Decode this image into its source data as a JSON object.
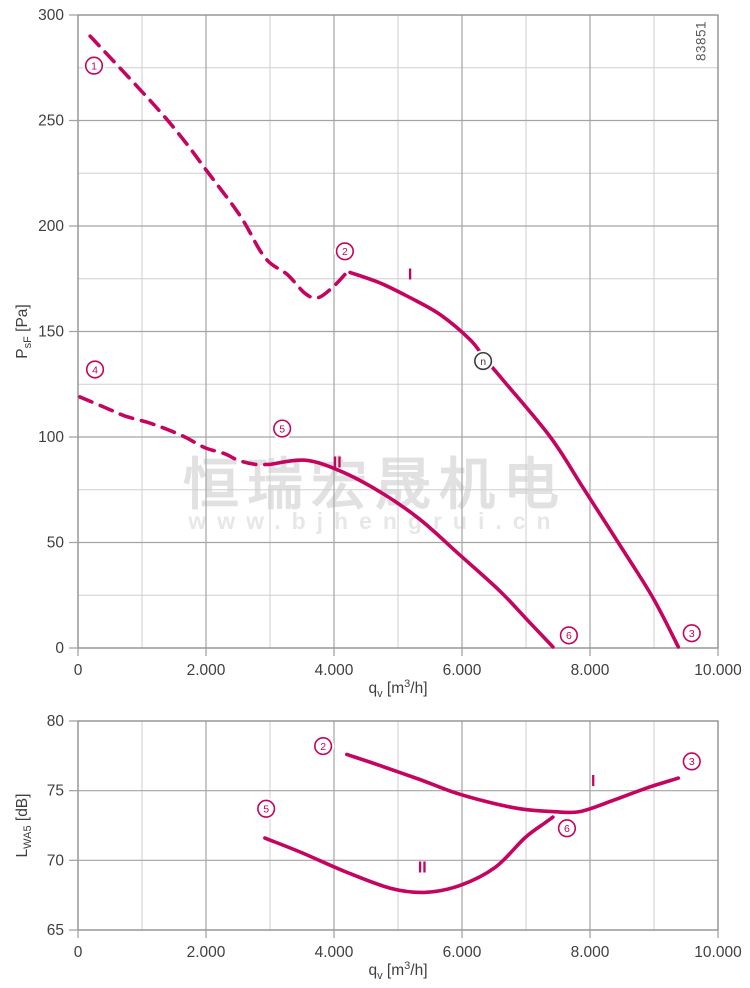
{
  "page": {
    "part_number": "83851"
  },
  "watermark": {
    "line1": "恒瑞宏晟机电",
    "line2": "www.bjhengrui.cn"
  },
  "colors": {
    "curve": "#C4045E",
    "grid_major": "#A4A4A4",
    "grid_minor": "#CFCFCF",
    "border": "#909090",
    "text": "#3F3F3F",
    "marker_n": "#3C3C3C"
  },
  "chart_data": [
    {
      "type": "line",
      "name": "static-pressure-curve",
      "xlabel_parts": [
        {
          "t": "q"
        },
        {
          "t": "v",
          "sub": true
        },
        {
          "t": " [m"
        },
        {
          "t": "3",
          "sup": true
        },
        {
          "t": "/h]"
        }
      ],
      "ylabel_parts": [
        {
          "t": "P"
        },
        {
          "t": "sF",
          "sub": true
        },
        {
          "t": " [Pa]"
        }
      ],
      "xlim": [
        0,
        10000
      ],
      "ylim": [
        0,
        300
      ],
      "x_major": 2000,
      "x_minor": 1000,
      "y_major": 50,
      "y_minor": 25,
      "xtick_values": [
        0,
        2000,
        4000,
        6000,
        8000,
        10000
      ],
      "xtick_labels": [
        "0",
        "2.000",
        "4.000",
        "6.000",
        "8.000",
        "10.000"
      ],
      "ytick_values": [
        0,
        50,
        100,
        150,
        200,
        250,
        300
      ],
      "ytick_labels": [
        "0",
        "50",
        "100",
        "150",
        "200",
        "250",
        "300"
      ],
      "series": [
        {
          "name": "I",
          "label": {
            "text": "I",
            "x": 5190,
            "y": 177
          },
          "segments": [
            {
              "style": "dashed",
              "points": [
                [
                  190,
                  290
                ],
                [
                  1200,
                  257
                ],
                [
                  1670,
                  240
                ],
                [
                  1990,
                  227
                ],
                [
                  2530,
                  205
                ],
                [
                  2920,
                  185
                ],
                [
                  3270,
                  177
                ],
                [
                  3550,
                  168
                ],
                [
                  3750,
                  166
                ],
                [
                  3980,
                  171
                ],
                [
                  4170,
                  177
                ]
              ]
            },
            {
              "style": "solid",
              "points": [
                [
                  4250,
                  178
                ],
                [
                  4720,
                  173
                ],
                [
                  5190,
                  166
                ],
                [
                  5660,
                  158
                ],
                [
                  6130,
                  146
                ],
                [
                  6360,
                  137
                ],
                [
                  6640,
                  127
                ],
                [
                  7380,
                  100
                ],
                [
                  7890,
                  76
                ],
                [
                  8440,
                  50
                ],
                [
                  8980,
                  24
                ],
                [
                  9380,
                  0.5
                ]
              ]
            }
          ]
        },
        {
          "name": "II",
          "label": {
            "text": "II",
            "x": 4050,
            "y": 88
          },
          "segments": [
            {
              "style": "dashed",
              "points": [
                [
                  30,
                  119
                ],
                [
                  420,
                  114
                ],
                [
                  730,
                  110
                ],
                [
                  1080,
                  107
                ],
                [
                  1360,
                  104
                ],
                [
                  1670,
                  100
                ],
                [
                  1980,
                  95
                ],
                [
                  2300,
                  92
                ],
                [
                  2500,
                  89
                ],
                [
                  2770,
                  87
                ],
                [
                  2970,
                  87
                ]
              ]
            },
            {
              "style": "solid",
              "points": [
                [
                  3000,
                  87
                ],
                [
                  3550,
                  89
                ],
                [
                  4090,
                  84
                ],
                [
                  4720,
                  74
                ],
                [
                  5340,
                  61
                ],
                [
                  5970,
                  44
                ],
                [
                  6590,
                  27
                ],
                [
                  7030,
                  13
                ],
                [
                  7420,
                  0.5
                ]
              ]
            }
          ]
        }
      ],
      "markers": [
        {
          "label": "1",
          "x": 250,
          "y": 276
        },
        {
          "label": "2",
          "x": 4170,
          "y": 188
        },
        {
          "label": "4",
          "x": 266,
          "y": 132
        },
        {
          "label": "5",
          "x": 3190,
          "y": 104
        },
        {
          "label": "6",
          "x": 7670,
          "y": 6
        },
        {
          "label": "3",
          "x": 9590,
          "y": 7
        },
        {
          "label": "n",
          "x": 6330,
          "y": 136,
          "dark": true
        }
      ]
    },
    {
      "type": "line",
      "name": "sound-level-curve",
      "xlabel_parts": [
        {
          "t": "q"
        },
        {
          "t": "v",
          "sub": true
        },
        {
          "t": " [m"
        },
        {
          "t": "3",
          "sup": true
        },
        {
          "t": "/h]"
        }
      ],
      "ylabel_parts": [
        {
          "t": "L"
        },
        {
          "t": "WA5",
          "sub": true
        },
        {
          "t": " [dB]"
        }
      ],
      "xlim": [
        0,
        10000
      ],
      "ylim": [
        65,
        80
      ],
      "x_major": 2000,
      "x_minor": 1000,
      "y_major": 5,
      "y_minor": null,
      "xtick_values": [
        0,
        2000,
        4000,
        6000,
        8000,
        10000
      ],
      "xtick_labels": [
        "0",
        "2.000",
        "4.000",
        "6.000",
        "8.000",
        "10.000"
      ],
      "ytick_values": [
        65,
        70,
        75,
        80
      ],
      "ytick_labels": [
        "65",
        "70",
        "75",
        "80"
      ],
      "series": [
        {
          "name": "I",
          "label": {
            "text": "I",
            "x": 8050,
            "y": 75.7
          },
          "segments": [
            {
              "style": "solid",
              "points": [
                [
                  4200,
                  77.6
                ],
                [
                  4720,
                  76.8
                ],
                [
                  5340,
                  75.8
                ],
                [
                  5860,
                  74.9
                ],
                [
                  6390,
                  74.2
                ],
                [
                  6910,
                  73.7
                ],
                [
                  7410,
                  73.5
                ],
                [
                  7840,
                  73.5
                ],
                [
                  8360,
                  74.3
                ],
                [
                  8890,
                  75.2
                ],
                [
                  9380,
                  75.9
                ]
              ]
            }
          ]
        },
        {
          "name": "II",
          "label": {
            "text": "II",
            "x": 5380,
            "y": 69.5
          },
          "segments": [
            {
              "style": "solid",
              "points": [
                [
                  2920,
                  71.6
                ],
                [
                  3470,
                  70.6
                ],
                [
                  4170,
                  69.2
                ],
                [
                  4880,
                  68.0
                ],
                [
                  5420,
                  67.7
                ],
                [
                  5970,
                  68.2
                ],
                [
                  6520,
                  69.5
                ],
                [
                  6980,
                  71.6
                ],
                [
                  7300,
                  72.7
                ],
                [
                  7420,
                  73.1
                ]
              ]
            }
          ]
        }
      ],
      "markers": [
        {
          "label": "2",
          "x": 3830,
          "y": 78.2
        },
        {
          "label": "5",
          "x": 2940,
          "y": 73.7
        },
        {
          "label": "6",
          "x": 7640,
          "y": 72.3
        },
        {
          "label": "3",
          "x": 9590,
          "y": 77.1
        }
      ]
    }
  ]
}
